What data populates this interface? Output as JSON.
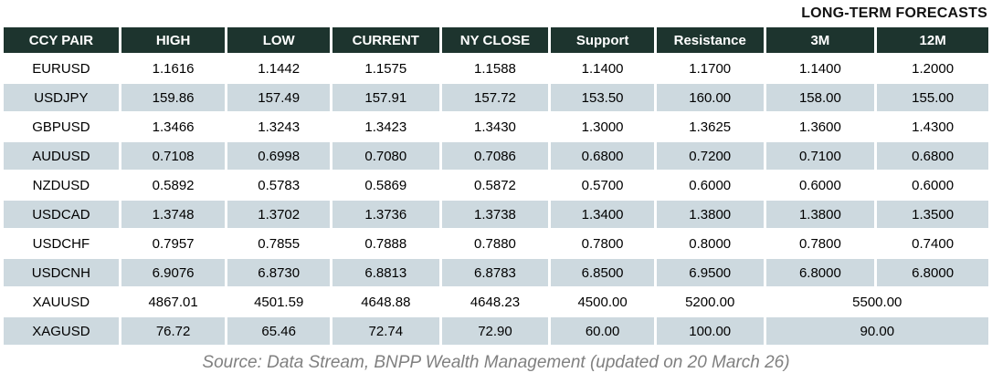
{
  "title": "LONG-TERM FORECASTS",
  "table": {
    "headers": [
      "CCY PAIR",
      "HIGH",
      "LOW",
      "CURRENT",
      "NY CLOSE",
      "Support",
      "Resistance",
      "3M",
      "12M"
    ],
    "rows": [
      {
        "pair": "EURUSD",
        "high": "1.1616",
        "low": "1.1442",
        "current": "1.1575",
        "ny_close": "1.1588",
        "support": "1.1400",
        "resistance": "1.1700",
        "m3": "1.1400",
        "m12": "1.2000"
      },
      {
        "pair": "USDJPY",
        "high": "159.86",
        "low": "157.49",
        "current": "157.91",
        "ny_close": "157.72",
        "support": "153.50",
        "resistance": "160.00",
        "m3": "158.00",
        "m12": "155.00"
      },
      {
        "pair": "GBPUSD",
        "high": "1.3466",
        "low": "1.3243",
        "current": "1.3423",
        "ny_close": "1.3430",
        "support": "1.3000",
        "resistance": "1.3625",
        "m3": "1.3600",
        "m12": "1.4300"
      },
      {
        "pair": "AUDUSD",
        "high": "0.7108",
        "low": "0.6998",
        "current": "0.7080",
        "ny_close": "0.7086",
        "support": "0.6800",
        "resistance": "0.7200",
        "m3": "0.7100",
        "m12": "0.6800"
      },
      {
        "pair": "NZDUSD",
        "high": "0.5892",
        "low": "0.5783",
        "current": "0.5869",
        "ny_close": "0.5872",
        "support": "0.5700",
        "resistance": "0.6000",
        "m3": "0.6000",
        "m12": "0.6000"
      },
      {
        "pair": "USDCAD",
        "high": "1.3748",
        "low": "1.3702",
        "current": "1.3736",
        "ny_close": "1.3738",
        "support": "1.3400",
        "resistance": "1.3800",
        "m3": "1.3800",
        "m12": "1.3500"
      },
      {
        "pair": "USDCHF",
        "high": "0.7957",
        "low": "0.7855",
        "current": "0.7888",
        "ny_close": "0.7880",
        "support": "0.7800",
        "resistance": "0.8000",
        "m3": "0.7800",
        "m12": "0.7400"
      },
      {
        "pair": "USDCNH",
        "high": "6.9076",
        "low": "6.8730",
        "current": "6.8813",
        "ny_close": "6.8783",
        "support": "6.8500",
        "resistance": "6.9500",
        "m3": "6.8000",
        "m12": "6.8000"
      },
      {
        "pair": "XAUUSD",
        "high": "4867.01",
        "low": "4501.59",
        "current": "4648.88",
        "ny_close": "4648.23",
        "support": "4500.00",
        "resistance": "5200.00",
        "forecast_merged": "5500.00"
      },
      {
        "pair": "XAGUSD",
        "high": "76.72",
        "low": "65.46",
        "current": "72.74",
        "ny_close": "72.90",
        "support": "60.00",
        "resistance": "100.00",
        "forecast_merged": "90.00"
      }
    ]
  },
  "footer": {
    "source": "Source: Data Stream, BNPP Wealth Management (updated on 20 March 26)"
  },
  "colors": {
    "header_bg": "#1D342E",
    "header_text": "#FFFFFF",
    "row_alt_bg": "#CDD9DF",
    "row_bg": "#FFFFFF",
    "title_text": "#121212",
    "source_text": "#808080"
  }
}
